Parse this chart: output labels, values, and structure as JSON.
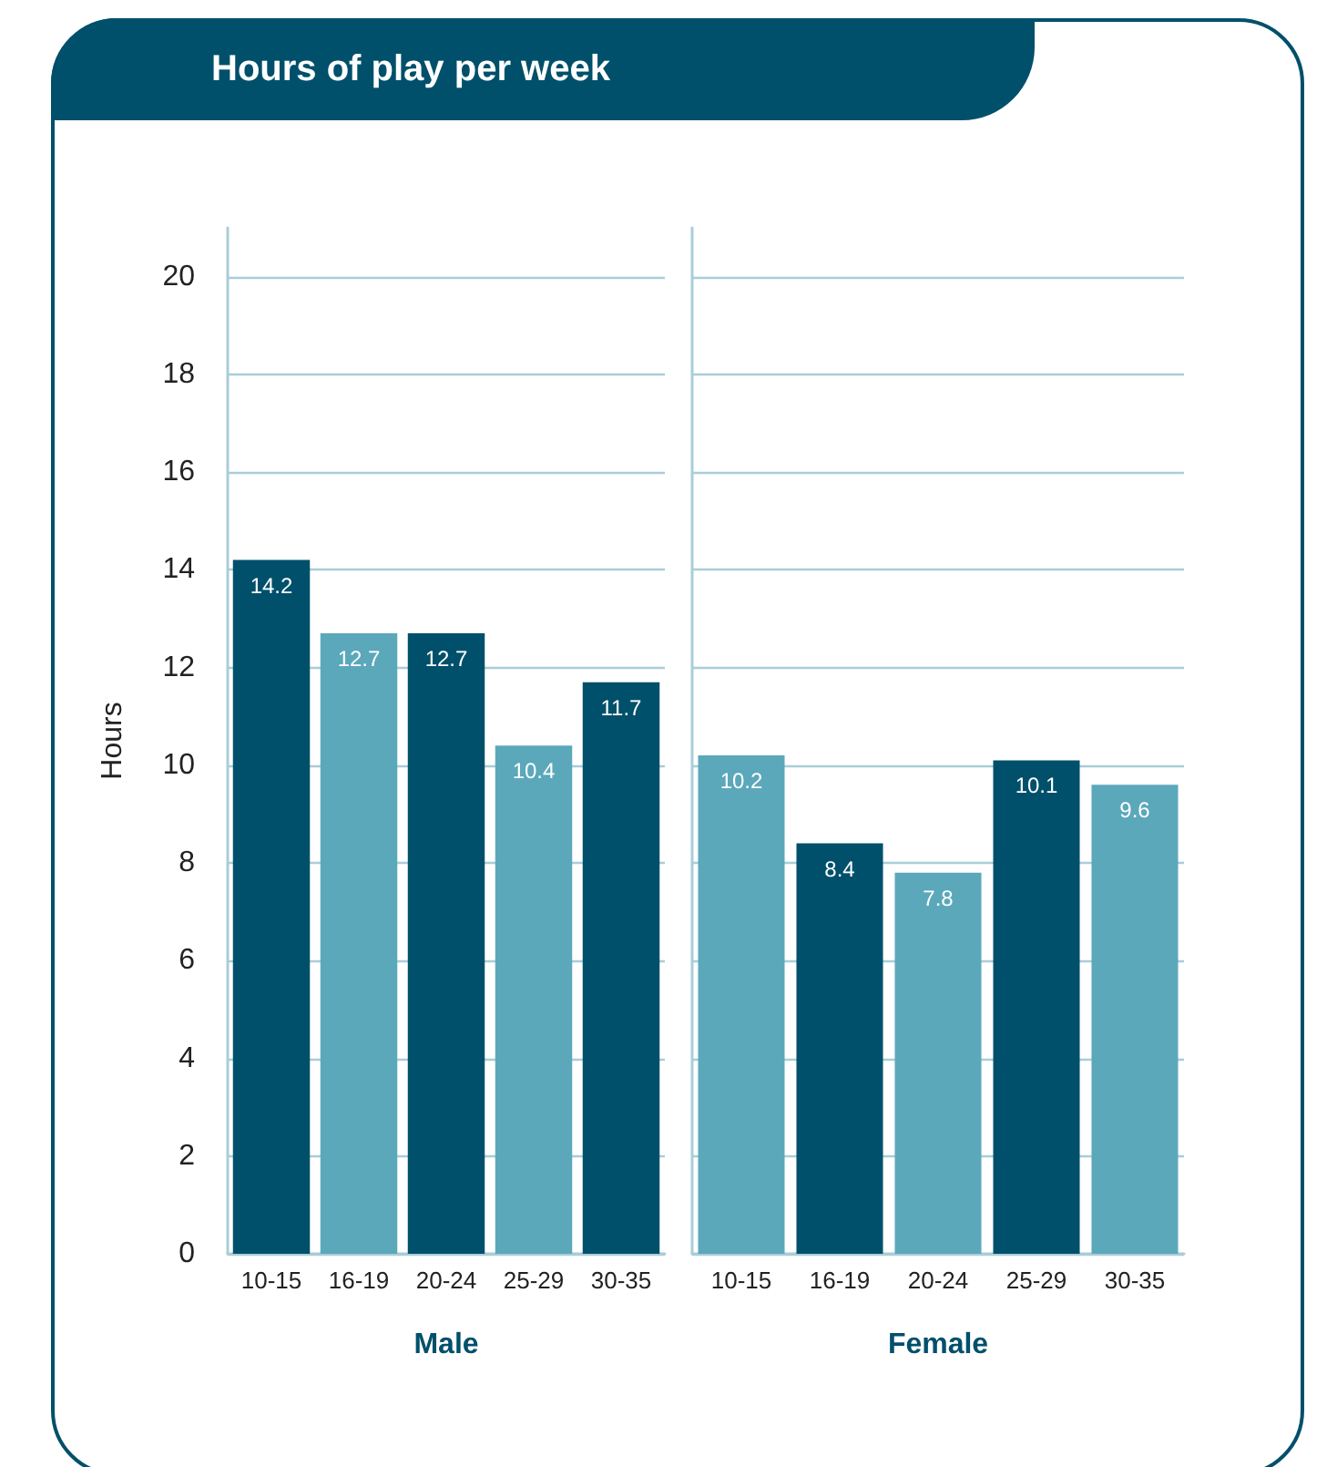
{
  "chart_data": [
    {
      "type": "bar",
      "title": "Hours of play per week",
      "xlabel": "Male",
      "ylabel": "Hours",
      "categories": [
        "10-15",
        "16-19",
        "20-24",
        "25-29",
        "30-35"
      ],
      "values": [
        14.2,
        12.7,
        12.7,
        10.4,
        11.7
      ],
      "colors": [
        "#00506b",
        "#5ba8bb",
        "#00506b",
        "#5ba8bb",
        "#00506b"
      ],
      "ylim": [
        0,
        21
      ],
      "yticks": [
        0,
        2,
        4,
        6,
        8,
        10,
        12,
        14,
        16,
        18,
        20
      ],
      "grid": "y",
      "data_labels": true
    },
    {
      "type": "bar",
      "xlabel": "Female",
      "categories": [
        "10-15",
        "16-19",
        "20-24",
        "25-29",
        "30-35"
      ],
      "values": [
        10.2,
        8.4,
        7.8,
        10.1,
        9.6
      ],
      "colors": [
        "#5ba8bb",
        "#00506b",
        "#5ba8bb",
        "#00506b",
        "#5ba8bb"
      ],
      "ylim": [
        0,
        21
      ],
      "yticks": [
        0,
        2,
        4,
        6,
        8,
        10,
        12,
        14,
        16,
        18,
        20
      ],
      "grid": "y",
      "data_labels": true,
      "tick_labels": "x"
    }
  ]
}
